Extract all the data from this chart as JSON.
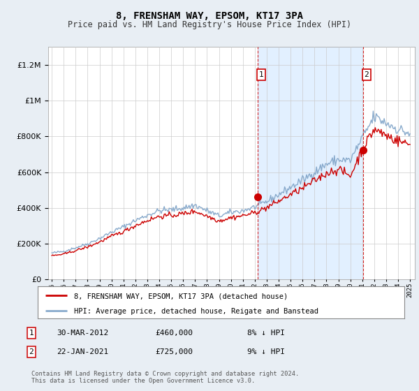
{
  "title": "8, FRENSHAM WAY, EPSOM, KT17 3PA",
  "subtitle": "Price paid vs. HM Land Registry's House Price Index (HPI)",
  "legend_line1": "8, FRENSHAM WAY, EPSOM, KT17 3PA (detached house)",
  "legend_line2": "HPI: Average price, detached house, Reigate and Banstead",
  "footnote": "Contains HM Land Registry data © Crown copyright and database right 2024.\nThis data is licensed under the Open Government Licence v3.0.",
  "sale1_label": "1",
  "sale1_date": "30-MAR-2012",
  "sale1_price": "£460,000",
  "sale1_hpi": "8% ↓ HPI",
  "sale1_year": 2012.25,
  "sale1_value": 460000,
  "sale2_label": "2",
  "sale2_date": "22-JAN-2021",
  "sale2_price": "£725,000",
  "sale2_hpi": "9% ↓ HPI",
  "sale2_year": 2021.05,
  "sale2_value": 725000,
  "red_color": "#cc0000",
  "blue_color": "#88aacc",
  "shade_color": "#ddeeff",
  "bg_color": "#e8eef4",
  "plot_bg": "#ffffff",
  "grid_color": "#cccccc",
  "marker_box_color": "#cc0000",
  "ylim": [
    0,
    1300000
  ],
  "xlim": [
    1994.7,
    2025.4
  ]
}
